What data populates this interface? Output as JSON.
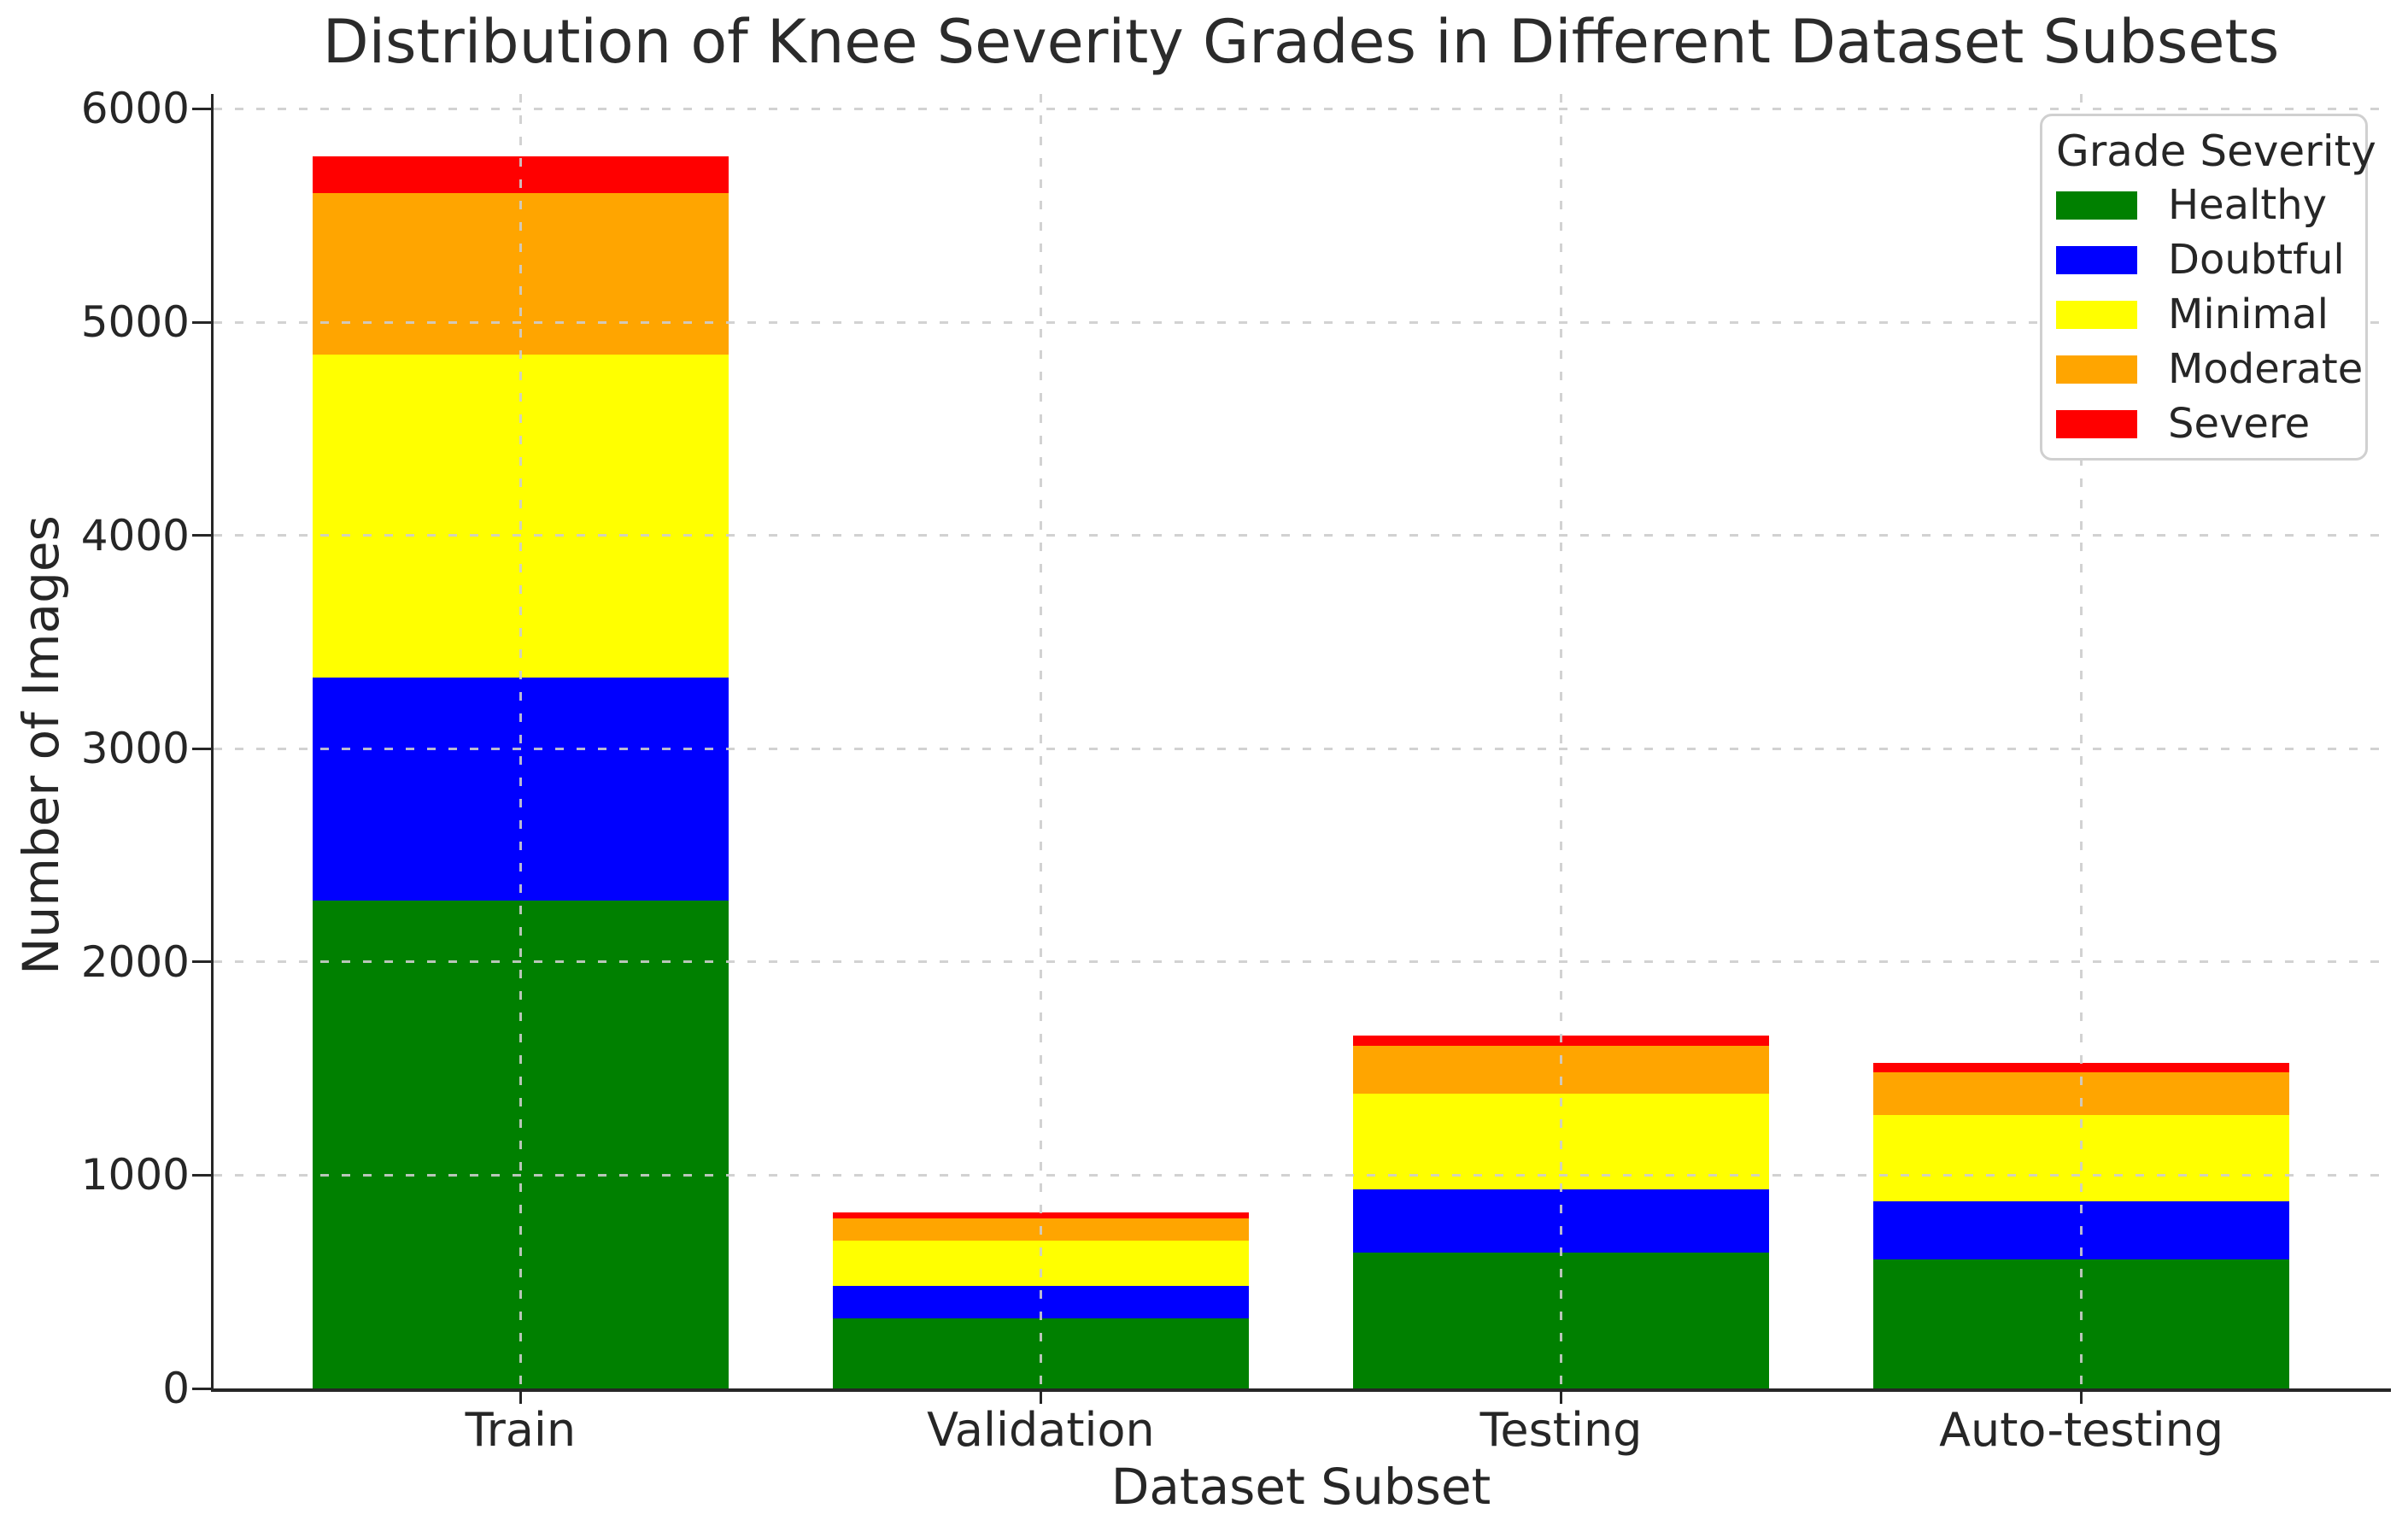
{
  "figure": {
    "title": "Distribution of Knee Severity Grades in Different Dataset Subsets",
    "background_color": "#ffffff",
    "text_color": "#262626",
    "grid_color": "#cdcdcd",
    "spine_color": "#262626"
  },
  "chart_data": {
    "type": "bar",
    "stacked": true,
    "title": "Distribution of Knee Severity Grades in Different Dataset Subsets",
    "xlabel": "Dataset Subset",
    "ylabel": "Number of Images",
    "categories": [
      "Train",
      "Validation",
      "Testing",
      "Auto-testing"
    ],
    "series": [
      {
        "name": "Healthy",
        "color": "#008000",
        "values": [
          2286,
          328,
          639,
          604
        ]
      },
      {
        "name": "Doubtful",
        "color": "#0000ff",
        "values": [
          1046,
          153,
          296,
          275
        ]
      },
      {
        "name": "Minimal",
        "color": "#ffff00",
        "values": [
          1516,
          212,
          447,
          403
        ]
      },
      {
        "name": "Moderate",
        "color": "#ffa500",
        "values": [
          757,
          106,
          223,
          200
        ]
      },
      {
        "name": "Severe",
        "color": "#ff0000",
        "values": [
          173,
          27,
          51,
          44
        ]
      }
    ],
    "ylim": [
      0,
      6070
    ],
    "yticks": [
      0,
      1000,
      2000,
      3000,
      4000,
      5000,
      6000
    ],
    "grid": "dashed-horizontal-and-vertical",
    "legend": {
      "title": "Grade Severity",
      "position": "upper-right"
    }
  }
}
